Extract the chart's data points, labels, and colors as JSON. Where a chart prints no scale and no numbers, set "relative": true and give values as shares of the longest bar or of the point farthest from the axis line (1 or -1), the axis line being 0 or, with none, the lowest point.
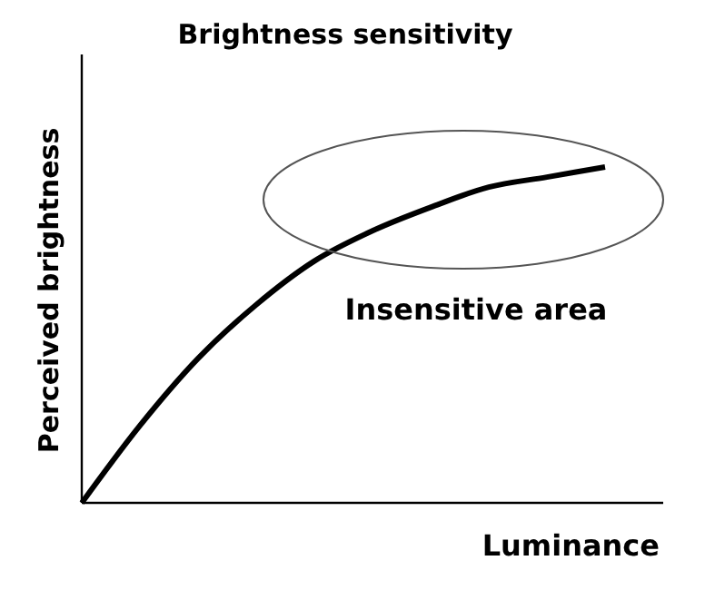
{
  "chart_data": {
    "type": "line",
    "title": "Brightness sensitivity",
    "xlabel": "Luminance",
    "ylabel": "Perceived brightness",
    "relative": true,
    "categories": [
      null,
      null,
      null,
      null,
      null,
      null,
      null,
      null,
      null,
      null,
      null
    ],
    "series": [
      {
        "color": "#000000",
        "values": [
          0,
          0.23,
          0.43,
          0.59,
          0.72,
          0.81,
          0.88,
          0.94,
          0.97,
          1,
          null
        ]
      }
    ],
    "annotations": [
      "Insensitive area"
    ],
    "marker": "none",
    "line_style": "solid"
  }
}
